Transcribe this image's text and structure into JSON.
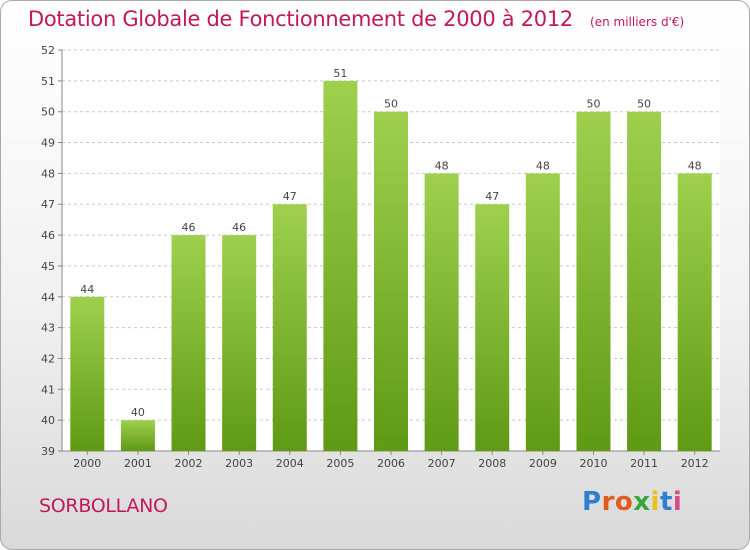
{
  "title": "Dotation Globale de Fonctionnement de 2000 à 2012",
  "unit": "(en milliers d'€)",
  "commune": "SORBOLLANO",
  "brand": {
    "name": "Proxiti",
    "letter_colors": [
      "#2f7fd0",
      "#e35b1b",
      "#e35b1b",
      "#3aa63a",
      "#e8c21c",
      "#2f7fd0",
      "#d84a8a"
    ]
  },
  "colors": {
    "title": "#c2185b",
    "bar_top": "#9ed04e",
    "bar_bottom": "#5f9a14",
    "grid": "#c8c8c8"
  },
  "chart_data": {
    "type": "bar",
    "categories": [
      "2000",
      "2001",
      "2002",
      "2003",
      "2004",
      "2005",
      "2006",
      "2007",
      "2008",
      "2009",
      "2010",
      "2011",
      "2012"
    ],
    "values": [
      44,
      40,
      46,
      46,
      47,
      51,
      50,
      48,
      47,
      48,
      50,
      50,
      48
    ],
    "ylim": [
      39,
      52
    ],
    "yticks": [
      39,
      40,
      41,
      42,
      43,
      44,
      45,
      46,
      47,
      48,
      49,
      50,
      51,
      52
    ],
    "grid": true,
    "legend": "none"
  }
}
